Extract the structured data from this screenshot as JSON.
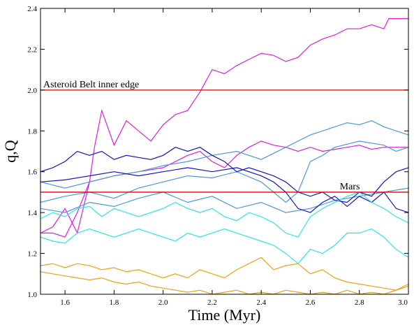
{
  "chart_data": {
    "type": "line",
    "title": "",
    "xlabel": "Time (Myr)",
    "ylabel": "q,Q",
    "xlim": [
      1.5,
      3.0
    ],
    "ylim": [
      1.0,
      2.4
    ],
    "xticks": [
      1.6,
      1.8,
      2.0,
      2.2,
      2.4,
      2.6,
      2.8,
      3.0
    ],
    "yticks": [
      1.0,
      1.2,
      1.4,
      1.6,
      1.8,
      2.0,
      2.2,
      2.4
    ],
    "xtick_labels": [
      "1.6",
      "1.8",
      "2.0",
      "2.2",
      "2.4",
      "2.6",
      "2.8",
      "3.0"
    ],
    "ytick_labels": [
      "1.0",
      "1.2",
      "1.4",
      "1.6",
      "1.8",
      "2.0",
      "2.2",
      "2.4"
    ],
    "grid": false,
    "hlines": [
      {
        "y": 2.0,
        "label": "Asteroid Belt inner edge",
        "color": "#e00000"
      },
      {
        "y": 1.5,
        "label": "Mars",
        "color": "#e00000"
      }
    ],
    "series": [
      {
        "color": "#e01ee0",
        "x": [
          1.5,
          1.55,
          1.6,
          1.65,
          1.7,
          1.72,
          1.75,
          1.8,
          1.85,
          1.9,
          1.95,
          2.0,
          2.05,
          2.1,
          2.15,
          2.2,
          2.25,
          2.3,
          2.35,
          2.4,
          2.45,
          2.5,
          2.55,
          2.6,
          2.65,
          2.7,
          2.75,
          2.8,
          2.85,
          2.9,
          2.92,
          2.95,
          3.0
        ],
        "y": [
          1.3,
          1.33,
          1.42,
          1.3,
          1.55,
          1.72,
          1.9,
          1.73,
          1.85,
          1.8,
          1.75,
          1.83,
          1.88,
          1.9,
          1.99,
          2.1,
          2.08,
          2.12,
          2.15,
          2.18,
          2.17,
          2.14,
          2.16,
          2.22,
          2.25,
          2.27,
          2.3,
          2.3,
          2.32,
          2.3,
          2.35,
          2.35,
          2.35
        ]
      },
      {
        "color": "#e01ee0",
        "x": [
          1.5,
          1.55,
          1.6,
          1.65,
          1.7,
          1.8,
          1.9,
          2.0,
          2.05,
          2.1,
          2.15,
          2.2,
          2.25,
          2.3,
          2.35,
          2.4,
          2.45,
          2.5,
          2.55,
          2.6,
          2.65,
          2.7,
          2.75,
          2.8,
          2.85,
          2.9,
          2.95,
          3.0
        ],
        "y": [
          1.3,
          1.3,
          1.28,
          1.4,
          1.55,
          1.58,
          1.6,
          1.62,
          1.65,
          1.68,
          1.7,
          1.65,
          1.62,
          1.68,
          1.72,
          1.75,
          1.73,
          1.72,
          1.7,
          1.72,
          1.7,
          1.71,
          1.72,
          1.73,
          1.71,
          1.72,
          1.72,
          1.72
        ]
      },
      {
        "color": "#4a9ae0",
        "x": [
          1.5,
          1.6,
          1.7,
          1.8,
          1.9,
          2.0,
          2.1,
          2.2,
          2.3,
          2.4,
          2.5,
          2.55,
          2.6,
          2.65,
          2.7,
          2.75,
          2.8,
          2.85,
          2.9,
          2.95,
          3.0
        ],
        "y": [
          1.55,
          1.52,
          1.55,
          1.58,
          1.6,
          1.63,
          1.65,
          1.68,
          1.7,
          1.66,
          1.72,
          1.75,
          1.78,
          1.8,
          1.82,
          1.84,
          1.83,
          1.85,
          1.82,
          1.8,
          1.78
        ]
      },
      {
        "color": "#4a9ae0",
        "x": [
          1.5,
          1.6,
          1.7,
          1.8,
          1.9,
          2.0,
          2.1,
          2.2,
          2.3,
          2.4,
          2.5,
          2.55,
          2.6,
          2.65,
          2.7,
          2.8,
          2.9,
          2.95,
          3.0
        ],
        "y": [
          1.45,
          1.48,
          1.5,
          1.47,
          1.52,
          1.55,
          1.58,
          1.57,
          1.6,
          1.55,
          1.45,
          1.5,
          1.65,
          1.68,
          1.72,
          1.75,
          1.73,
          1.7,
          1.72
        ]
      },
      {
        "color": "#4a9ae0",
        "x": [
          1.5,
          1.6,
          1.7,
          1.8,
          1.9,
          2.0,
          2.1,
          2.2,
          2.3,
          2.4,
          2.5,
          2.6,
          2.7,
          2.8,
          2.9,
          3.0
        ],
        "y": [
          1.42,
          1.4,
          1.45,
          1.43,
          1.47,
          1.5,
          1.45,
          1.48,
          1.42,
          1.45,
          1.4,
          1.42,
          1.46,
          1.48,
          1.5,
          1.52
        ]
      },
      {
        "color": "#1414c8",
        "x": [
          1.5,
          1.55,
          1.6,
          1.65,
          1.7,
          1.75,
          1.8,
          1.85,
          1.9,
          1.95,
          2.0,
          2.05,
          2.1,
          2.15,
          2.2,
          2.25,
          2.3,
          2.35,
          2.4,
          2.45,
          2.5,
          2.55,
          2.6,
          2.65,
          2.7,
          2.75,
          2.8,
          2.85,
          2.9,
          2.95,
          3.0
        ],
        "y": [
          1.6,
          1.62,
          1.65,
          1.7,
          1.68,
          1.7,
          1.66,
          1.68,
          1.67,
          1.66,
          1.68,
          1.72,
          1.7,
          1.72,
          1.68,
          1.65,
          1.6,
          1.62,
          1.6,
          1.58,
          1.55,
          1.5,
          1.48,
          1.5,
          1.46,
          1.45,
          1.5,
          1.48,
          1.55,
          1.6,
          1.62
        ]
      },
      {
        "color": "#1414c8",
        "x": [
          1.5,
          1.6,
          1.7,
          1.8,
          1.9,
          2.0,
          2.1,
          2.2,
          2.3,
          2.4,
          2.45,
          2.5,
          2.55,
          2.6,
          2.65,
          2.7,
          2.75,
          2.8,
          2.85,
          2.9,
          2.95,
          3.0
        ],
        "y": [
          1.55,
          1.56,
          1.58,
          1.6,
          1.58,
          1.6,
          1.62,
          1.6,
          1.62,
          1.58,
          1.55,
          1.5,
          1.42,
          1.4,
          1.45,
          1.48,
          1.43,
          1.48,
          1.45,
          1.5,
          1.42,
          1.4
        ]
      },
      {
        "color": "#2ce6e6",
        "x": [
          1.5,
          1.55,
          1.6,
          1.65,
          1.7,
          1.75,
          1.8,
          1.85,
          1.9,
          2.0,
          2.05,
          2.1,
          2.15,
          2.2,
          2.25,
          2.3,
          2.35,
          2.4,
          2.45,
          2.5,
          2.55,
          2.6,
          2.65,
          2.7,
          2.75,
          2.8,
          2.85,
          2.9,
          2.95,
          3.0
        ],
        "y": [
          1.37,
          1.4,
          1.38,
          1.42,
          1.43,
          1.38,
          1.42,
          1.4,
          1.38,
          1.42,
          1.45,
          1.42,
          1.4,
          1.42,
          1.38,
          1.36,
          1.4,
          1.38,
          1.35,
          1.3,
          1.28,
          1.38,
          1.42,
          1.45,
          1.48,
          1.5,
          1.45,
          1.42,
          1.38,
          1.35
        ]
      },
      {
        "color": "#2ce6e6",
        "x": [
          1.5,
          1.55,
          1.6,
          1.65,
          1.7,
          1.75,
          1.8,
          1.85,
          1.9,
          2.0,
          2.05,
          2.1,
          2.15,
          2.2,
          2.25,
          2.3,
          2.35,
          2.4,
          2.45,
          2.5,
          2.55,
          2.6,
          2.65,
          2.7,
          2.75,
          2.8,
          2.85,
          2.9,
          2.95,
          3.0
        ],
        "y": [
          1.28,
          1.26,
          1.25,
          1.3,
          1.32,
          1.3,
          1.28,
          1.3,
          1.32,
          1.28,
          1.26,
          1.3,
          1.28,
          1.3,
          1.32,
          1.3,
          1.28,
          1.26,
          1.24,
          1.2,
          1.15,
          1.22,
          1.2,
          1.24,
          1.3,
          1.3,
          1.32,
          1.28,
          1.22,
          1.18
        ]
      },
      {
        "color": "#f0a010",
        "x": [
          1.5,
          1.55,
          1.6,
          1.65,
          1.7,
          1.75,
          1.8,
          1.85,
          1.9,
          1.95,
          2.0,
          2.05,
          2.1,
          2.15,
          2.2,
          2.25,
          2.3,
          2.35,
          2.4,
          2.45,
          2.5,
          2.55,
          2.6,
          2.65,
          2.7,
          2.75,
          2.8,
          2.85,
          2.9,
          2.95,
          3.0
        ],
        "y": [
          1.14,
          1.15,
          1.13,
          1.15,
          1.14,
          1.12,
          1.13,
          1.11,
          1.12,
          1.1,
          1.08,
          1.1,
          1.08,
          1.12,
          1.1,
          1.08,
          1.12,
          1.15,
          1.18,
          1.12,
          1.14,
          1.15,
          1.1,
          1.12,
          1.08,
          1.06,
          1.05,
          1.04,
          1.03,
          1.02,
          1.04
        ]
      },
      {
        "color": "#f0a010",
        "x": [
          1.5,
          1.55,
          1.6,
          1.65,
          1.7,
          1.75,
          1.8,
          1.85,
          1.9,
          1.95,
          2.0,
          2.05,
          2.1,
          2.15,
          2.2,
          2.25,
          2.3,
          2.35,
          2.4,
          2.45,
          2.5,
          2.55,
          2.6,
          2.65,
          2.7,
          2.75,
          2.8,
          2.85,
          2.9,
          2.95,
          3.0
        ],
        "y": [
          1.11,
          1.1,
          1.09,
          1.08,
          1.07,
          1.08,
          1.06,
          1.05,
          1.06,
          1.04,
          1.03,
          1.02,
          1.01,
          1.02,
          1.0,
          1.01,
          1.02,
          1.0,
          1.01,
          1.0,
          1.02,
          1.01,
          1.0,
          1.01,
          1.0,
          1.02,
          1.0,
          1.01,
          1.0,
          1.02,
          1.05
        ]
      }
    ]
  }
}
